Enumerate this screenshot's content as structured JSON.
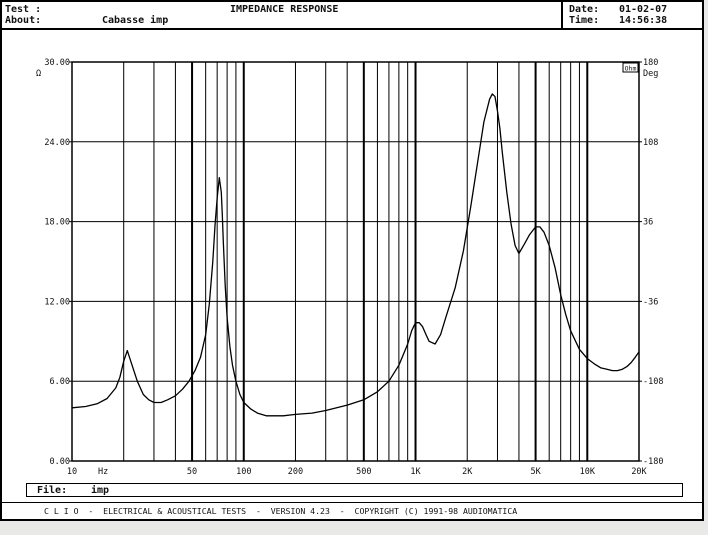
{
  "header": {
    "test_label": "Test :",
    "about_label": "About:",
    "about_value": "Cabasse imp",
    "title": "IMPEDANCE RESPONSE",
    "date_label": "Date:",
    "date_value": "01-02-07",
    "time_label": "Time:",
    "time_value": "14:56:38"
  },
  "file": {
    "label": "File:",
    "value": "imp"
  },
  "footer": {
    "text": "C L I O  -  ELECTRICAL & ACOUSTICAL TESTS  -  VERSION 4.23  -  COPYRIGHT (C) 1991-98 AUDIOMATICA"
  },
  "colors": {
    "background": "#ffffff",
    "grid": "#000000",
    "trace": "#000000",
    "page": "#e9e9e7"
  },
  "chart_data": {
    "type": "line",
    "title": "IMPEDANCE RESPONSE",
    "x_scale": "log",
    "xlim": [
      10,
      20000
    ],
    "ylim": [
      0,
      30
    ],
    "y2lim": [
      -180,
      180
    ],
    "left_axis_unit": "Ω",
    "right_axis_unit": "Deg",
    "x_ticks": [
      {
        "value": 10,
        "label": "10"
      },
      {
        "value": 50,
        "label": "50"
      },
      {
        "value": 100,
        "label": "100"
      },
      {
        "value": 200,
        "label": "200"
      },
      {
        "value": 500,
        "label": "500"
      },
      {
        "value": 1000,
        "label": "1K"
      },
      {
        "value": 2000,
        "label": "2K"
      },
      {
        "value": 5000,
        "label": "5K"
      },
      {
        "value": 10000,
        "label": "10K"
      },
      {
        "value": 20000,
        "label": "20K"
      }
    ],
    "x_unit_label": "Hz",
    "y_ticks": [
      {
        "value": 0,
        "label": "0.00"
      },
      {
        "value": 6,
        "label": "6.00"
      },
      {
        "value": 12,
        "label": "12.00"
      },
      {
        "value": 18,
        "label": "18.00"
      },
      {
        "value": 24,
        "label": "24.00"
      },
      {
        "value": 30,
        "label": "30.00"
      }
    ],
    "y2_ticks": [
      {
        "value": -180,
        "label": "-180"
      },
      {
        "value": -108,
        "label": "-108"
      },
      {
        "value": -36,
        "label": "-36"
      },
      {
        "value": 36,
        "label": "36"
      },
      {
        "value": 108,
        "label": "108"
      },
      {
        "value": 180,
        "label": "180"
      }
    ],
    "corner_label": "Ohm",
    "series": [
      {
        "x": [
          10,
          12,
          14,
          16,
          18,
          19,
          20,
          21,
          22,
          24,
          26,
          28,
          30,
          33,
          36,
          40,
          44,
          48,
          52,
          56,
          60,
          63,
          66,
          68,
          70,
          72,
          74,
          75,
          76,
          78,
          80,
          83,
          86,
          90,
          95,
          100,
          110,
          120,
          135,
          150,
          170,
          200,
          250,
          300,
          400,
          500,
          600,
          700,
          800,
          900,
          950,
          1000,
          1050,
          1100,
          1150,
          1200,
          1300,
          1400,
          1500,
          1700,
          1900,
          2100,
          2300,
          2500,
          2700,
          2800,
          2900,
          3000,
          3100,
          3200,
          3400,
          3600,
          3800,
          4000,
          4300,
          4600,
          5000,
          5300,
          5600,
          6000,
          6500,
          7000,
          7500,
          8000,
          9000,
          10000,
          11000,
          12000,
          13000,
          14000,
          15000,
          16000,
          17000,
          18000,
          19000,
          20000
        ],
        "y": [
          4.0,
          4.1,
          4.3,
          4.7,
          5.5,
          6.3,
          7.5,
          8.3,
          7.5,
          6.0,
          5.0,
          4.6,
          4.4,
          4.4,
          4.6,
          4.9,
          5.4,
          6.0,
          6.8,
          7.8,
          9.5,
          11.8,
          15.0,
          17.7,
          19.8,
          21.3,
          20.2,
          18.5,
          16.5,
          13.2,
          10.8,
          8.6,
          7.2,
          6.0,
          5.0,
          4.4,
          3.9,
          3.6,
          3.4,
          3.4,
          3.4,
          3.5,
          3.6,
          3.8,
          4.2,
          4.6,
          5.2,
          6.0,
          7.2,
          8.8,
          9.8,
          10.4,
          10.4,
          10.1,
          9.5,
          9.0,
          8.8,
          9.5,
          10.8,
          13.0,
          15.8,
          19.2,
          22.5,
          25.5,
          27.2,
          27.6,
          27.4,
          26.3,
          25.0,
          23.2,
          20.2,
          17.8,
          16.2,
          15.6,
          16.3,
          17.0,
          17.6,
          17.6,
          17.2,
          16.2,
          14.5,
          12.5,
          11.0,
          9.8,
          8.4,
          7.7,
          7.3,
          7.0,
          6.9,
          6.8,
          6.8,
          6.9,
          7.1,
          7.4,
          7.8,
          8.2
        ]
      }
    ]
  }
}
